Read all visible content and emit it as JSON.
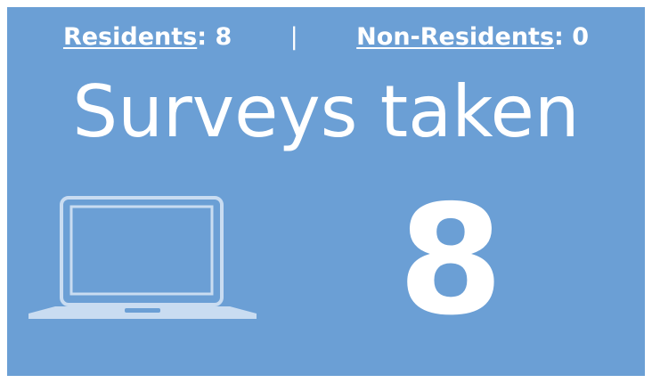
{
  "summary": {
    "delimiter": ":",
    "divider": "|",
    "items": [
      {
        "label": "Residents",
        "value": 8
      },
      {
        "label": "Non-Residents",
        "value": 0
      }
    ]
  },
  "title": "Surveys taken",
  "total": 8
}
